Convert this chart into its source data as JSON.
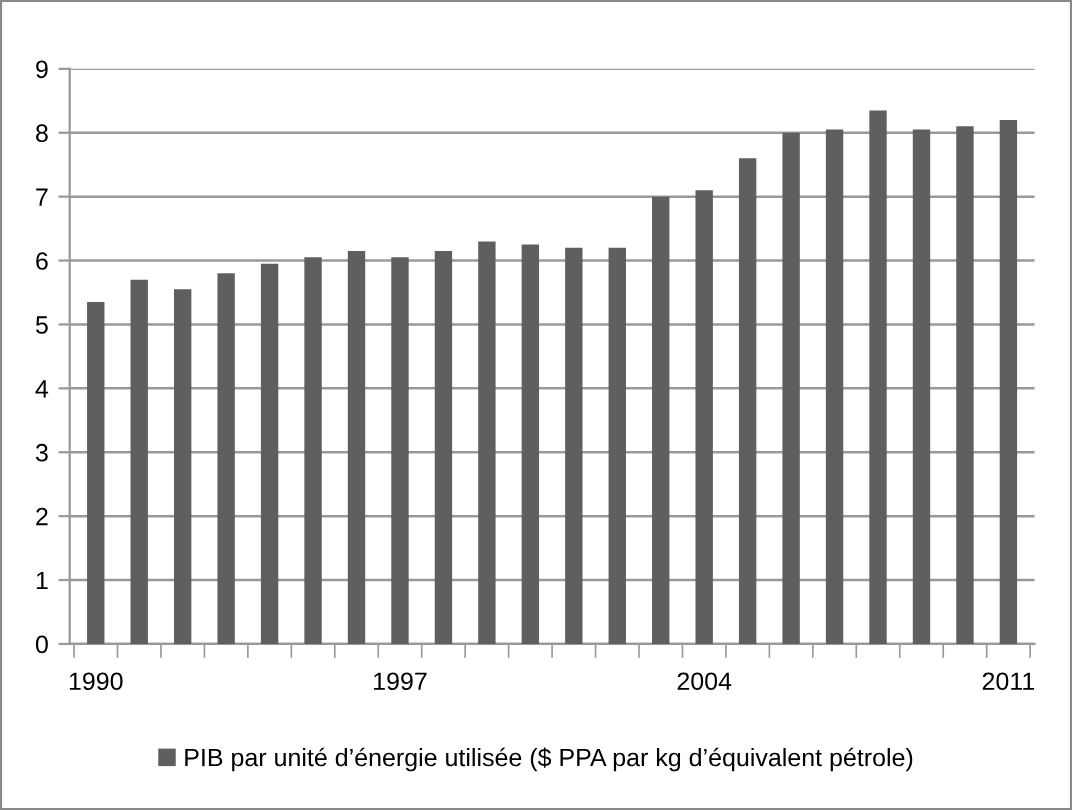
{
  "chart_data": {
    "type": "bar",
    "categories": [
      "1990",
      null,
      null,
      null,
      null,
      null,
      null,
      "1997",
      null,
      null,
      null,
      null,
      null,
      null,
      "2004",
      null,
      null,
      null,
      null,
      null,
      null,
      "2011"
    ],
    "series": [
      {
        "name": "PIB par unité d’énergie utilisée ($ PPA par kg d’équivalent pétrole)",
        "color": "#5f5f5f",
        "values": [
          5.35,
          5.7,
          5.55,
          5.8,
          5.95,
          6.05,
          6.15,
          6.05,
          6.15,
          6.3,
          6.25,
          6.2,
          6.2,
          7.0,
          7.1,
          7.6,
          8.0,
          8.05,
          8.35,
          8.05,
          8.1,
          8.2
        ]
      }
    ],
    "ylim": [
      0,
      9
    ],
    "yticks": [
      0,
      1,
      2,
      3,
      4,
      5,
      6,
      7,
      8,
      9
    ],
    "grid": "y",
    "legend": "bottom"
  }
}
